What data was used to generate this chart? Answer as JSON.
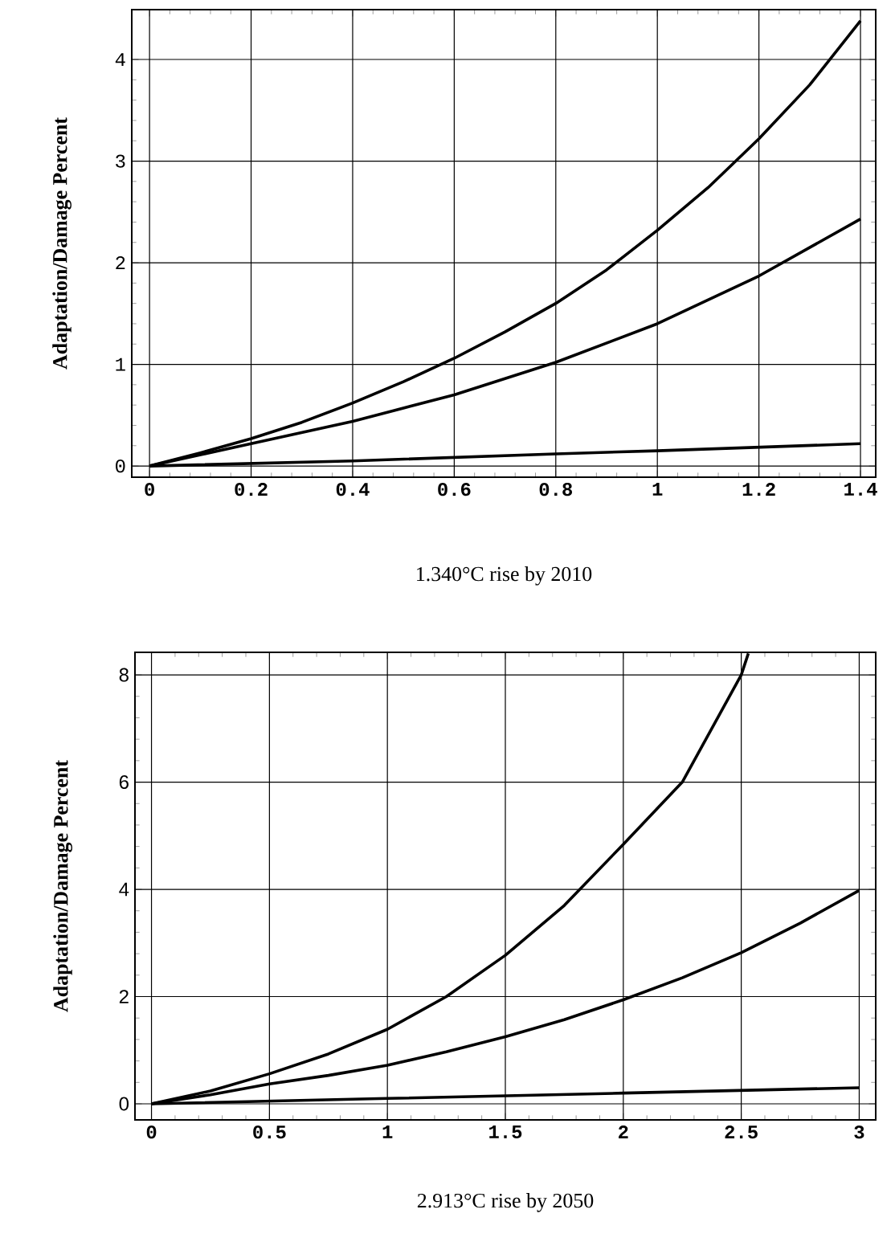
{
  "chart_data": [
    {
      "type": "line",
      "xlabel": "1.340°C rise by 2010",
      "ylabel": "Adaptation/Damage Percent",
      "xlim": [
        -0.035,
        1.43
      ],
      "ylim": [
        -0.11,
        4.49
      ],
      "xticks": [
        0,
        {
          "value": 0.2,
          "label": "0.2"
        },
        {
          "value": 0.4,
          "label": "0.4"
        },
        {
          "value": 0.6,
          "label": "0.6"
        },
        {
          "value": 0.8,
          "label": "0.8"
        },
        1,
        {
          "value": 1.2,
          "label": "1.2"
        },
        {
          "value": 1.4,
          "label": "1.4"
        }
      ],
      "yticks": [
        0,
        1,
        2,
        3,
        4
      ],
      "grid": true,
      "marker": "none",
      "line_style": "solid",
      "series": [
        {
          "color": "#000000",
          "x": [
            0,
            0.1,
            0.2,
            0.3,
            0.4,
            0.5,
            0.6,
            0.7,
            0.8,
            0.9,
            1.0,
            1.1,
            1.2,
            1.3,
            1.4
          ],
          "values": [
            0,
            0.13,
            0.27,
            0.43,
            0.62,
            0.83,
            1.06,
            1.32,
            1.6,
            1.93,
            2.32,
            2.74,
            3.22,
            3.75,
            4.38
          ]
        },
        {
          "color": "#000000",
          "x": [
            0,
            0.2,
            0.4,
            0.6,
            0.8,
            1.0,
            1.2,
            1.4
          ],
          "values": [
            0,
            0.22,
            0.44,
            0.7,
            1.02,
            1.4,
            1.87,
            2.43
          ]
        },
        {
          "color": "#000000",
          "x": [
            0,
            0.4,
            0.8,
            1.0,
            1.4
          ],
          "values": [
            0,
            0.05,
            0.12,
            0.15,
            0.22
          ]
        }
      ]
    },
    {
      "type": "line",
      "xlabel": "2.913°C rise by 2050",
      "ylabel": "Adaptation/Damage Percent",
      "xlim": [
        -0.07,
        3.07
      ],
      "ylim": [
        -0.3,
        8.42
      ],
      "xticks": [
        0,
        0.5,
        1,
        1.5,
        2,
        2.5,
        3
      ],
      "yticks": [
        0,
        2,
        4,
        6,
        8
      ],
      "grid": true,
      "marker": "none",
      "line_style": "solid",
      "series": [
        {
          "color": "#000000",
          "x": [
            0,
            0.25,
            0.5,
            0.75,
            1.0,
            1.25,
            1.5,
            1.75,
            2.0,
            2.25,
            2.5,
            2.53
          ],
          "values": [
            0,
            0.24,
            0.56,
            0.93,
            1.39,
            2.0,
            2.77,
            3.7,
            4.84,
            6.0,
            8.0,
            8.4
          ]
        },
        {
          "color": "#000000",
          "x": [
            0,
            0.25,
            0.5,
            0.75,
            1.0,
            1.25,
            1.5,
            1.75,
            2.0,
            2.25,
            2.5,
            2.75,
            3.0
          ],
          "values": [
            0,
            0.17,
            0.37,
            0.53,
            0.72,
            0.97,
            1.25,
            1.57,
            1.94,
            2.35,
            2.82,
            3.37,
            3.98
          ]
        },
        {
          "color": "#000000",
          "x": [
            0,
            1,
            2,
            3
          ],
          "values": [
            0,
            0.1,
            0.2,
            0.3
          ]
        }
      ]
    }
  ]
}
